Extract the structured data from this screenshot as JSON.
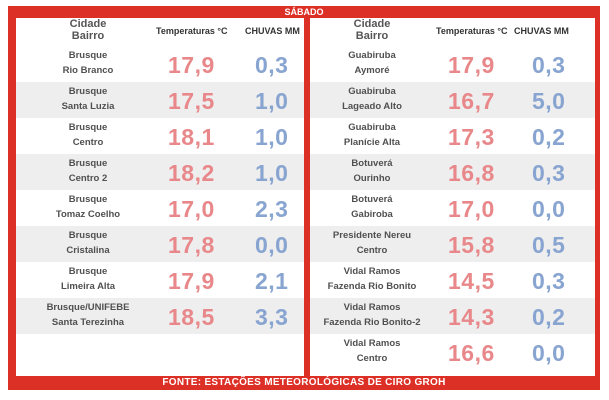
{
  "header": {
    "day": "SÁBADO"
  },
  "footer": {
    "source": "FONTE: ESTAÇÕES METEOROLÓGICAS DE CIRO GROH"
  },
  "columns": {
    "city_line1": "Cidade",
    "city_line2": "Bairro",
    "temperature": "Temperaturas °C",
    "rain": "CHUVAS MM"
  },
  "left": [
    {
      "city": "Brusque",
      "district": "Rio Branco",
      "temp": "17,9",
      "rain": "0,3"
    },
    {
      "city": "Brusque",
      "district": "Santa Luzia",
      "temp": "17,5",
      "rain": "1,0"
    },
    {
      "city": "Brusque",
      "district": "Centro",
      "temp": "18,1",
      "rain": "1,0"
    },
    {
      "city": "Brusque",
      "district": "Centro 2",
      "temp": "18,2",
      "rain": "1,0"
    },
    {
      "city": "Brusque",
      "district": "Tomaz Coelho",
      "temp": "17,0",
      "rain": "2,3"
    },
    {
      "city": "Brusque",
      "district": "Cristalina",
      "temp": "17,8",
      "rain": "0,0"
    },
    {
      "city": "Brusque",
      "district": "Limeira Alta",
      "temp": "17,9",
      "rain": "2,1"
    },
    {
      "city": "Brusque/UNIFEBE",
      "district": "Santa Terezinha",
      "temp": "18,5",
      "rain": "3,3"
    }
  ],
  "right": [
    {
      "city": "Guabiruba",
      "district": "Aymoré",
      "temp": "17,9",
      "rain": "0,3"
    },
    {
      "city": "Guabiruba",
      "district": "Lageado Alto",
      "temp": "16,7",
      "rain": "5,0"
    },
    {
      "city": "Guabiruba",
      "district": "Planície Alta",
      "temp": "17,3",
      "rain": "0,2"
    },
    {
      "city": "Botuverá",
      "district": "Ourinho",
      "temp": "16,8",
      "rain": "0,3"
    },
    {
      "city": "Botuverá",
      "district": "Gabiroba",
      "temp": "17,0",
      "rain": "0,0"
    },
    {
      "city": "Presidente Nereu",
      "district": "Centro",
      "temp": "15,8",
      "rain": "0,5"
    },
    {
      "city": "Vidal Ramos",
      "district": "Fazenda Rio Bonito",
      "temp": "14,5",
      "rain": "0,3"
    },
    {
      "city": "Vidal Ramos",
      "district": "Fazenda Rio Bonito-2",
      "temp": "14,3",
      "rain": "0,2"
    },
    {
      "city": "Vidal Ramos",
      "district": "Centro",
      "temp": "16,6",
      "rain": "0,0"
    }
  ],
  "colors": {
    "frame": "#dc2f26",
    "temperature": "#e8888a",
    "rain": "#88a4d0",
    "shade": "#eeeeee"
  }
}
